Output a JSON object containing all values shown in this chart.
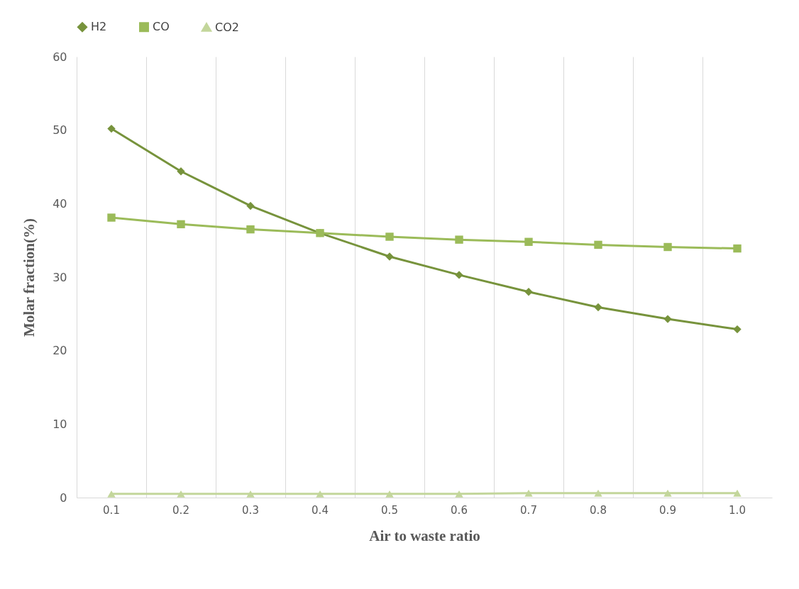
{
  "chart_data": {
    "type": "line",
    "xlabel": "Air to waste ratio",
    "ylabel": "Molar fraction(%)",
    "categories": [
      "0.1",
      "0.2",
      "0.3",
      "0.4",
      "0.5",
      "0.6",
      "0.7",
      "0.8",
      "0.9",
      "1.0"
    ],
    "series": [
      {
        "name": "H2",
        "color": "#77933c",
        "marker": "diamond",
        "values": [
          50.2,
          44.4,
          39.7,
          36.0,
          32.8,
          30.3,
          28.0,
          25.9,
          24.3,
          22.9
        ]
      },
      {
        "name": "CO",
        "color": "#9bbb59",
        "marker": "square",
        "values": [
          38.1,
          37.2,
          36.5,
          36.0,
          35.5,
          35.1,
          34.8,
          34.4,
          34.1,
          33.9
        ]
      },
      {
        "name": "CO2",
        "color": "#c3d69b",
        "marker": "triangle",
        "values": [
          0.5,
          0.5,
          0.5,
          0.5,
          0.5,
          0.5,
          0.6,
          0.6,
          0.6,
          0.6
        ]
      }
    ],
    "ylim": [
      0,
      60
    ],
    "yticks": [
      0,
      10,
      20,
      30,
      40,
      50,
      60
    ],
    "grid": "x",
    "legend": "top"
  }
}
